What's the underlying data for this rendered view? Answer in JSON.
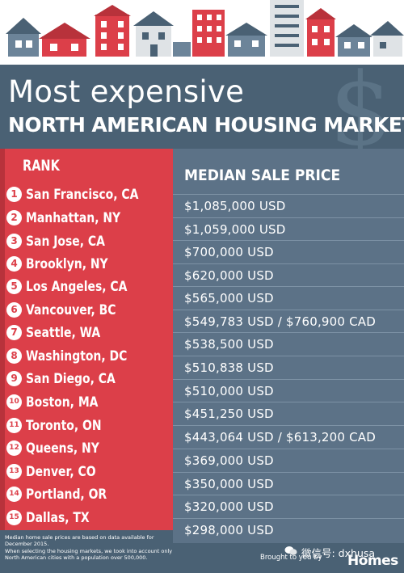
{
  "title": {
    "line1": "Most expensive",
    "line2": "NORTH AMERICAN HOUSING MARKETS"
  },
  "headers": {
    "rank": "RANK",
    "price": "MEDIAN SALE PRICE"
  },
  "markets": [
    {
      "rank": "1",
      "city": "San Francisco, CA",
      "price": "$1,085,000 USD"
    },
    {
      "rank": "2",
      "city": "Manhattan, NY",
      "price": "$1,059,000 USD"
    },
    {
      "rank": "3",
      "city": "San Jose, CA",
      "price": "$700,000 USD"
    },
    {
      "rank": "4",
      "city": "Brooklyn, NY",
      "price": "$620,000 USD"
    },
    {
      "rank": "5",
      "city": "Los Angeles, CA",
      "price": "$565,000 USD"
    },
    {
      "rank": "6",
      "city": "Vancouver, BC",
      "price": "$549,783 USD / $760,900 CAD"
    },
    {
      "rank": "7",
      "city": "Seattle, WA",
      "price": "$538,500 USD"
    },
    {
      "rank": "8",
      "city": "Washington, DC",
      "price": "$510,838 USD"
    },
    {
      "rank": "9",
      "city": "San Diego, CA",
      "price": "$510,000 USD"
    },
    {
      "rank": "10",
      "city": "Boston, MA",
      "price": "$451,250 USD"
    },
    {
      "rank": "11",
      "city": "Toronto, ON",
      "price": "$443,064 USD / $613,200 CAD"
    },
    {
      "rank": "12",
      "city": "Queens, NY",
      "price": "$369,000 USD"
    },
    {
      "rank": "13",
      "city": "Denver, CO",
      "price": "$350,000 USD"
    },
    {
      "rank": "14",
      "city": "Portland, OR",
      "price": "$320,000 USD"
    },
    {
      "rank": "15",
      "city": "Dallas, TX",
      "price": "$298,000 USD"
    }
  ],
  "footnote": {
    "line1": "Median home sale prices are based on data available for December 2015.",
    "line2": "When selecting the housing markets, we took into account only North American cities with a population over 500,000."
  },
  "credit": {
    "brought_by": "Brought to you by",
    "wechat": "微信号: dxhusa",
    "brand": "Homes"
  },
  "decor": {
    "dollar_sign": "$"
  },
  "colors": {
    "rank_red": "#dc3f49",
    "price_blue": "#5c7287",
    "title_bg": "#4a6174"
  }
}
